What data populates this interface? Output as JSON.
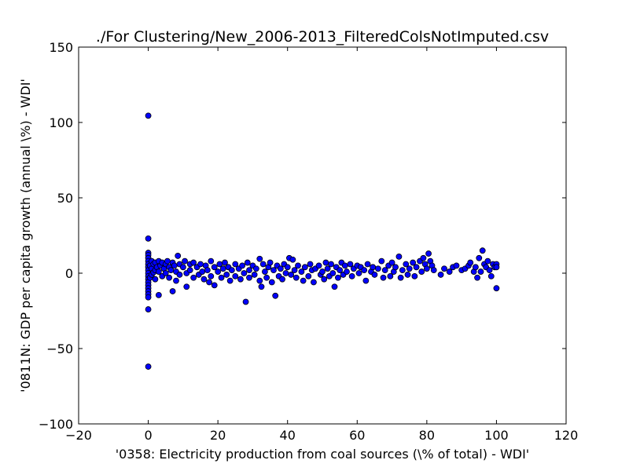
{
  "chart_data": {
    "type": "scatter",
    "title": "./For Clustering/New_2006-2013_FilteredColsNotImputed.csv",
    "xlabel": "'0358: Electricity production from coal sources  (\\% of total) - WDI'",
    "ylabel": "'0811N: GDP per capita growth  (annual \\%) - WDI'",
    "xlim": [
      -20,
      120
    ],
    "ylim": [
      -100,
      150
    ],
    "xticks": [
      "-20",
      "0",
      "20",
      "40",
      "60",
      "80",
      "100",
      "120"
    ],
    "yticks": [
      "-100",
      "-50",
      "0",
      "50",
      "100",
      "150"
    ],
    "grid": false,
    "marker_color": "#0000ff",
    "points": [
      {
        "x": 0,
        "y": 104.5
      },
      {
        "x": 0,
        "y": 23
      },
      {
        "x": 0,
        "y": 13.5
      },
      {
        "x": 0,
        "y": 12
      },
      {
        "x": 0,
        "y": 10
      },
      {
        "x": 0,
        "y": 8
      },
      {
        "x": 0,
        "y": 6
      },
      {
        "x": 0,
        "y": 4
      },
      {
        "x": 0,
        "y": 2
      },
      {
        "x": 0,
        "y": 0
      },
      {
        "x": 0,
        "y": -2
      },
      {
        "x": 0,
        "y": -4
      },
      {
        "x": 0,
        "y": -6
      },
      {
        "x": 0,
        "y": -8
      },
      {
        "x": 0,
        "y": -10
      },
      {
        "x": 0,
        "y": -12
      },
      {
        "x": 0,
        "y": -14
      },
      {
        "x": 0,
        "y": -16
      },
      {
        "x": 0,
        "y": -24
      },
      {
        "x": 0,
        "y": -62
      },
      {
        "x": 0.5,
        "y": 5
      },
      {
        "x": 0.5,
        "y": -3
      },
      {
        "x": 1,
        "y": 8
      },
      {
        "x": 1,
        "y": 3
      },
      {
        "x": 1,
        "y": -1
      },
      {
        "x": 1.5,
        "y": 6
      },
      {
        "x": 1.5,
        "y": 0.5
      },
      {
        "x": 2,
        "y": 7
      },
      {
        "x": 2,
        "y": 2
      },
      {
        "x": 2,
        "y": -4
      },
      {
        "x": 2.5,
        "y": 4
      },
      {
        "x": 3,
        "y": 8
      },
      {
        "x": 3,
        "y": -14.5
      },
      {
        "x": 3,
        "y": 1
      },
      {
        "x": 3.5,
        "y": 5
      },
      {
        "x": 4,
        "y": 7
      },
      {
        "x": 4,
        "y": -2
      },
      {
        "x": 4.5,
        "y": 3
      },
      {
        "x": 5,
        "y": 6
      },
      {
        "x": 5,
        "y": 0
      },
      {
        "x": 5.5,
        "y": 8
      },
      {
        "x": 6,
        "y": 4
      },
      {
        "x": 6,
        "y": -3
      },
      {
        "x": 6.5,
        "y": 2
      },
      {
        "x": 7,
        "y": 7
      },
      {
        "x": 7,
        "y": -12
      },
      {
        "x": 7.5,
        "y": 5
      },
      {
        "x": 8,
        "y": 1
      },
      {
        "x": 8,
        "y": -5
      },
      {
        "x": 8.5,
        "y": 11.5
      },
      {
        "x": 9,
        "y": 6
      },
      {
        "x": 9,
        "y": -1
      },
      {
        "x": 10,
        "y": 4
      },
      {
        "x": 10.5,
        "y": 8
      },
      {
        "x": 11,
        "y": 0
      },
      {
        "x": 11,
        "y": -9
      },
      {
        "x": 12,
        "y": 6
      },
      {
        "x": 12,
        "y": 2
      },
      {
        "x": 13,
        "y": -3
      },
      {
        "x": 13,
        "y": 7
      },
      {
        "x": 14,
        "y": 4
      },
      {
        "x": 14.5,
        "y": -1
      },
      {
        "x": 15,
        "y": 6
      },
      {
        "x": 15.5,
        "y": 1
      },
      {
        "x": 16,
        "y": -4
      },
      {
        "x": 16.5,
        "y": 5
      },
      {
        "x": 17,
        "y": 2
      },
      {
        "x": 17.5,
        "y": -6
      },
      {
        "x": 18,
        "y": 8
      },
      {
        "x": 18,
        "y": -2
      },
      {
        "x": 19,
        "y": 4
      },
      {
        "x": 19,
        "y": -8
      },
      {
        "x": 20,
        "y": 1
      },
      {
        "x": 20.5,
        "y": 6
      },
      {
        "x": 21,
        "y": -3
      },
      {
        "x": 21.5,
        "y": 3
      },
      {
        "x": 22,
        "y": 7
      },
      {
        "x": 22.5,
        "y": -1
      },
      {
        "x": 23,
        "y": 4
      },
      {
        "x": 23.5,
        "y": -5
      },
      {
        "x": 24,
        "y": 2
      },
      {
        "x": 25,
        "y": 6
      },
      {
        "x": 25,
        "y": -2
      },
      {
        "x": 26,
        "y": 3
      },
      {
        "x": 26.5,
        "y": -4
      },
      {
        "x": 27,
        "y": 5
      },
      {
        "x": 27.5,
        "y": 0
      },
      {
        "x": 28,
        "y": -19
      },
      {
        "x": 28.5,
        "y": 7
      },
      {
        "x": 29,
        "y": 2
      },
      {
        "x": 29,
        "y": -3
      },
      {
        "x": 30,
        "y": 5
      },
      {
        "x": 30.5,
        "y": -1
      },
      {
        "x": 31,
        "y": 3
      },
      {
        "x": 32,
        "y": 9.5
      },
      {
        "x": 32,
        "y": -5
      },
      {
        "x": 32.5,
        "y": -9
      },
      {
        "x": 33,
        "y": 6
      },
      {
        "x": 33.5,
        "y": 1
      },
      {
        "x": 34,
        "y": -3
      },
      {
        "x": 34.5,
        "y": 4
      },
      {
        "x": 35,
        "y": 7
      },
      {
        "x": 35.5,
        "y": -6
      },
      {
        "x": 36,
        "y": 2
      },
      {
        "x": 36.5,
        "y": -15
      },
      {
        "x": 37,
        "y": 5
      },
      {
        "x": 37.5,
        "y": -2
      },
      {
        "x": 38,
        "y": 3
      },
      {
        "x": 38.5,
        "y": -4
      },
      {
        "x": 39,
        "y": 6
      },
      {
        "x": 39.5,
        "y": 0
      },
      {
        "x": 40,
        "y": 4
      },
      {
        "x": 40.5,
        "y": 10
      },
      {
        "x": 41,
        "y": -1
      },
      {
        "x": 41.5,
        "y": 9
      },
      {
        "x": 42,
        "y": 2
      },
      {
        "x": 42.5,
        "y": -3
      },
      {
        "x": 43,
        "y": 5
      },
      {
        "x": 44,
        "y": 1
      },
      {
        "x": 44.5,
        "y": -5
      },
      {
        "x": 45,
        "y": 4
      },
      {
        "x": 46,
        "y": -2
      },
      {
        "x": 46.5,
        "y": 6
      },
      {
        "x": 47,
        "y": 2
      },
      {
        "x": 47.5,
        "y": -6
      },
      {
        "x": 48,
        "y": 3
      },
      {
        "x": 49,
        "y": 5
      },
      {
        "x": 49.5,
        "y": -1
      },
      {
        "x": 50,
        "y": 1
      },
      {
        "x": 50.5,
        "y": -4
      },
      {
        "x": 51,
        "y": 7
      },
      {
        "x": 51.5,
        "y": 3
      },
      {
        "x": 52,
        "y": -2
      },
      {
        "x": 52.5,
        "y": 6
      },
      {
        "x": 53,
        "y": 0
      },
      {
        "x": 53.5,
        "y": -9
      },
      {
        "x": 54,
        "y": 4
      },
      {
        "x": 54.5,
        "y": -3
      },
      {
        "x": 55,
        "y": 2
      },
      {
        "x": 55.5,
        "y": 7
      },
      {
        "x": 56,
        "y": -1
      },
      {
        "x": 56.5,
        "y": 5
      },
      {
        "x": 57,
        "y": 1
      },
      {
        "x": 58,
        "y": 6
      },
      {
        "x": 58.5,
        "y": -2
      },
      {
        "x": 59,
        "y": 3
      },
      {
        "x": 60,
        "y": 5
      },
      {
        "x": 60.5,
        "y": 0
      },
      {
        "x": 61,
        "y": 4
      },
      {
        "x": 62,
        "y": 2
      },
      {
        "x": 62.5,
        "y": -5
      },
      {
        "x": 63,
        "y": 6
      },
      {
        "x": 64,
        "y": 1
      },
      {
        "x": 64.5,
        "y": 4
      },
      {
        "x": 65,
        "y": -1
      },
      {
        "x": 66,
        "y": 3
      },
      {
        "x": 67,
        "y": 8
      },
      {
        "x": 67.5,
        "y": -3
      },
      {
        "x": 68,
        "y": 2
      },
      {
        "x": 69,
        "y": 5
      },
      {
        "x": 69.5,
        "y": -2
      },
      {
        "x": 70,
        "y": 7
      },
      {
        "x": 70.5,
        "y": 1
      },
      {
        "x": 71,
        "y": 4
      },
      {
        "x": 72,
        "y": 11
      },
      {
        "x": 72.5,
        "y": -3
      },
      {
        "x": 73,
        "y": 2
      },
      {
        "x": 74,
        "y": 6
      },
      {
        "x": 74.5,
        "y": -1
      },
      {
        "x": 75,
        "y": 3
      },
      {
        "x": 76,
        "y": 7
      },
      {
        "x": 76.5,
        "y": -2
      },
      {
        "x": 77,
        "y": 4
      },
      {
        "x": 78,
        "y": 8
      },
      {
        "x": 78.5,
        "y": 1
      },
      {
        "x": 79,
        "y": 10
      },
      {
        "x": 79.5,
        "y": 6
      },
      {
        "x": 80,
        "y": 3
      },
      {
        "x": 80.5,
        "y": 13
      },
      {
        "x": 81,
        "y": 8
      },
      {
        "x": 81.5,
        "y": 5
      },
      {
        "x": 82,
        "y": 2
      },
      {
        "x": 84,
        "y": -1
      },
      {
        "x": 85,
        "y": 3
      },
      {
        "x": 86.5,
        "y": 1
      },
      {
        "x": 87.5,
        "y": 4
      },
      {
        "x": 88.5,
        "y": 5
      },
      {
        "x": 90,
        "y": 2
      },
      {
        "x": 91,
        "y": 3
      },
      {
        "x": 92,
        "y": 5
      },
      {
        "x": 92.5,
        "y": 7
      },
      {
        "x": 93.5,
        "y": 1
      },
      {
        "x": 94,
        "y": 4
      },
      {
        "x": 94.5,
        "y": -3
      },
      {
        "x": 95,
        "y": 10
      },
      {
        "x": 95.5,
        "y": 1
      },
      {
        "x": 96,
        "y": 15
      },
      {
        "x": 96.5,
        "y": 6
      },
      {
        "x": 97,
        "y": 4
      },
      {
        "x": 97.5,
        "y": 8
      },
      {
        "x": 98,
        "y": 2
      },
      {
        "x": 98.5,
        "y": -2
      },
      {
        "x": 99,
        "y": 6
      },
      {
        "x": 99.5,
        "y": 4
      },
      {
        "x": 100,
        "y": 6
      },
      {
        "x": 100,
        "y": 4
      },
      {
        "x": 100,
        "y": -10
      }
    ]
  }
}
